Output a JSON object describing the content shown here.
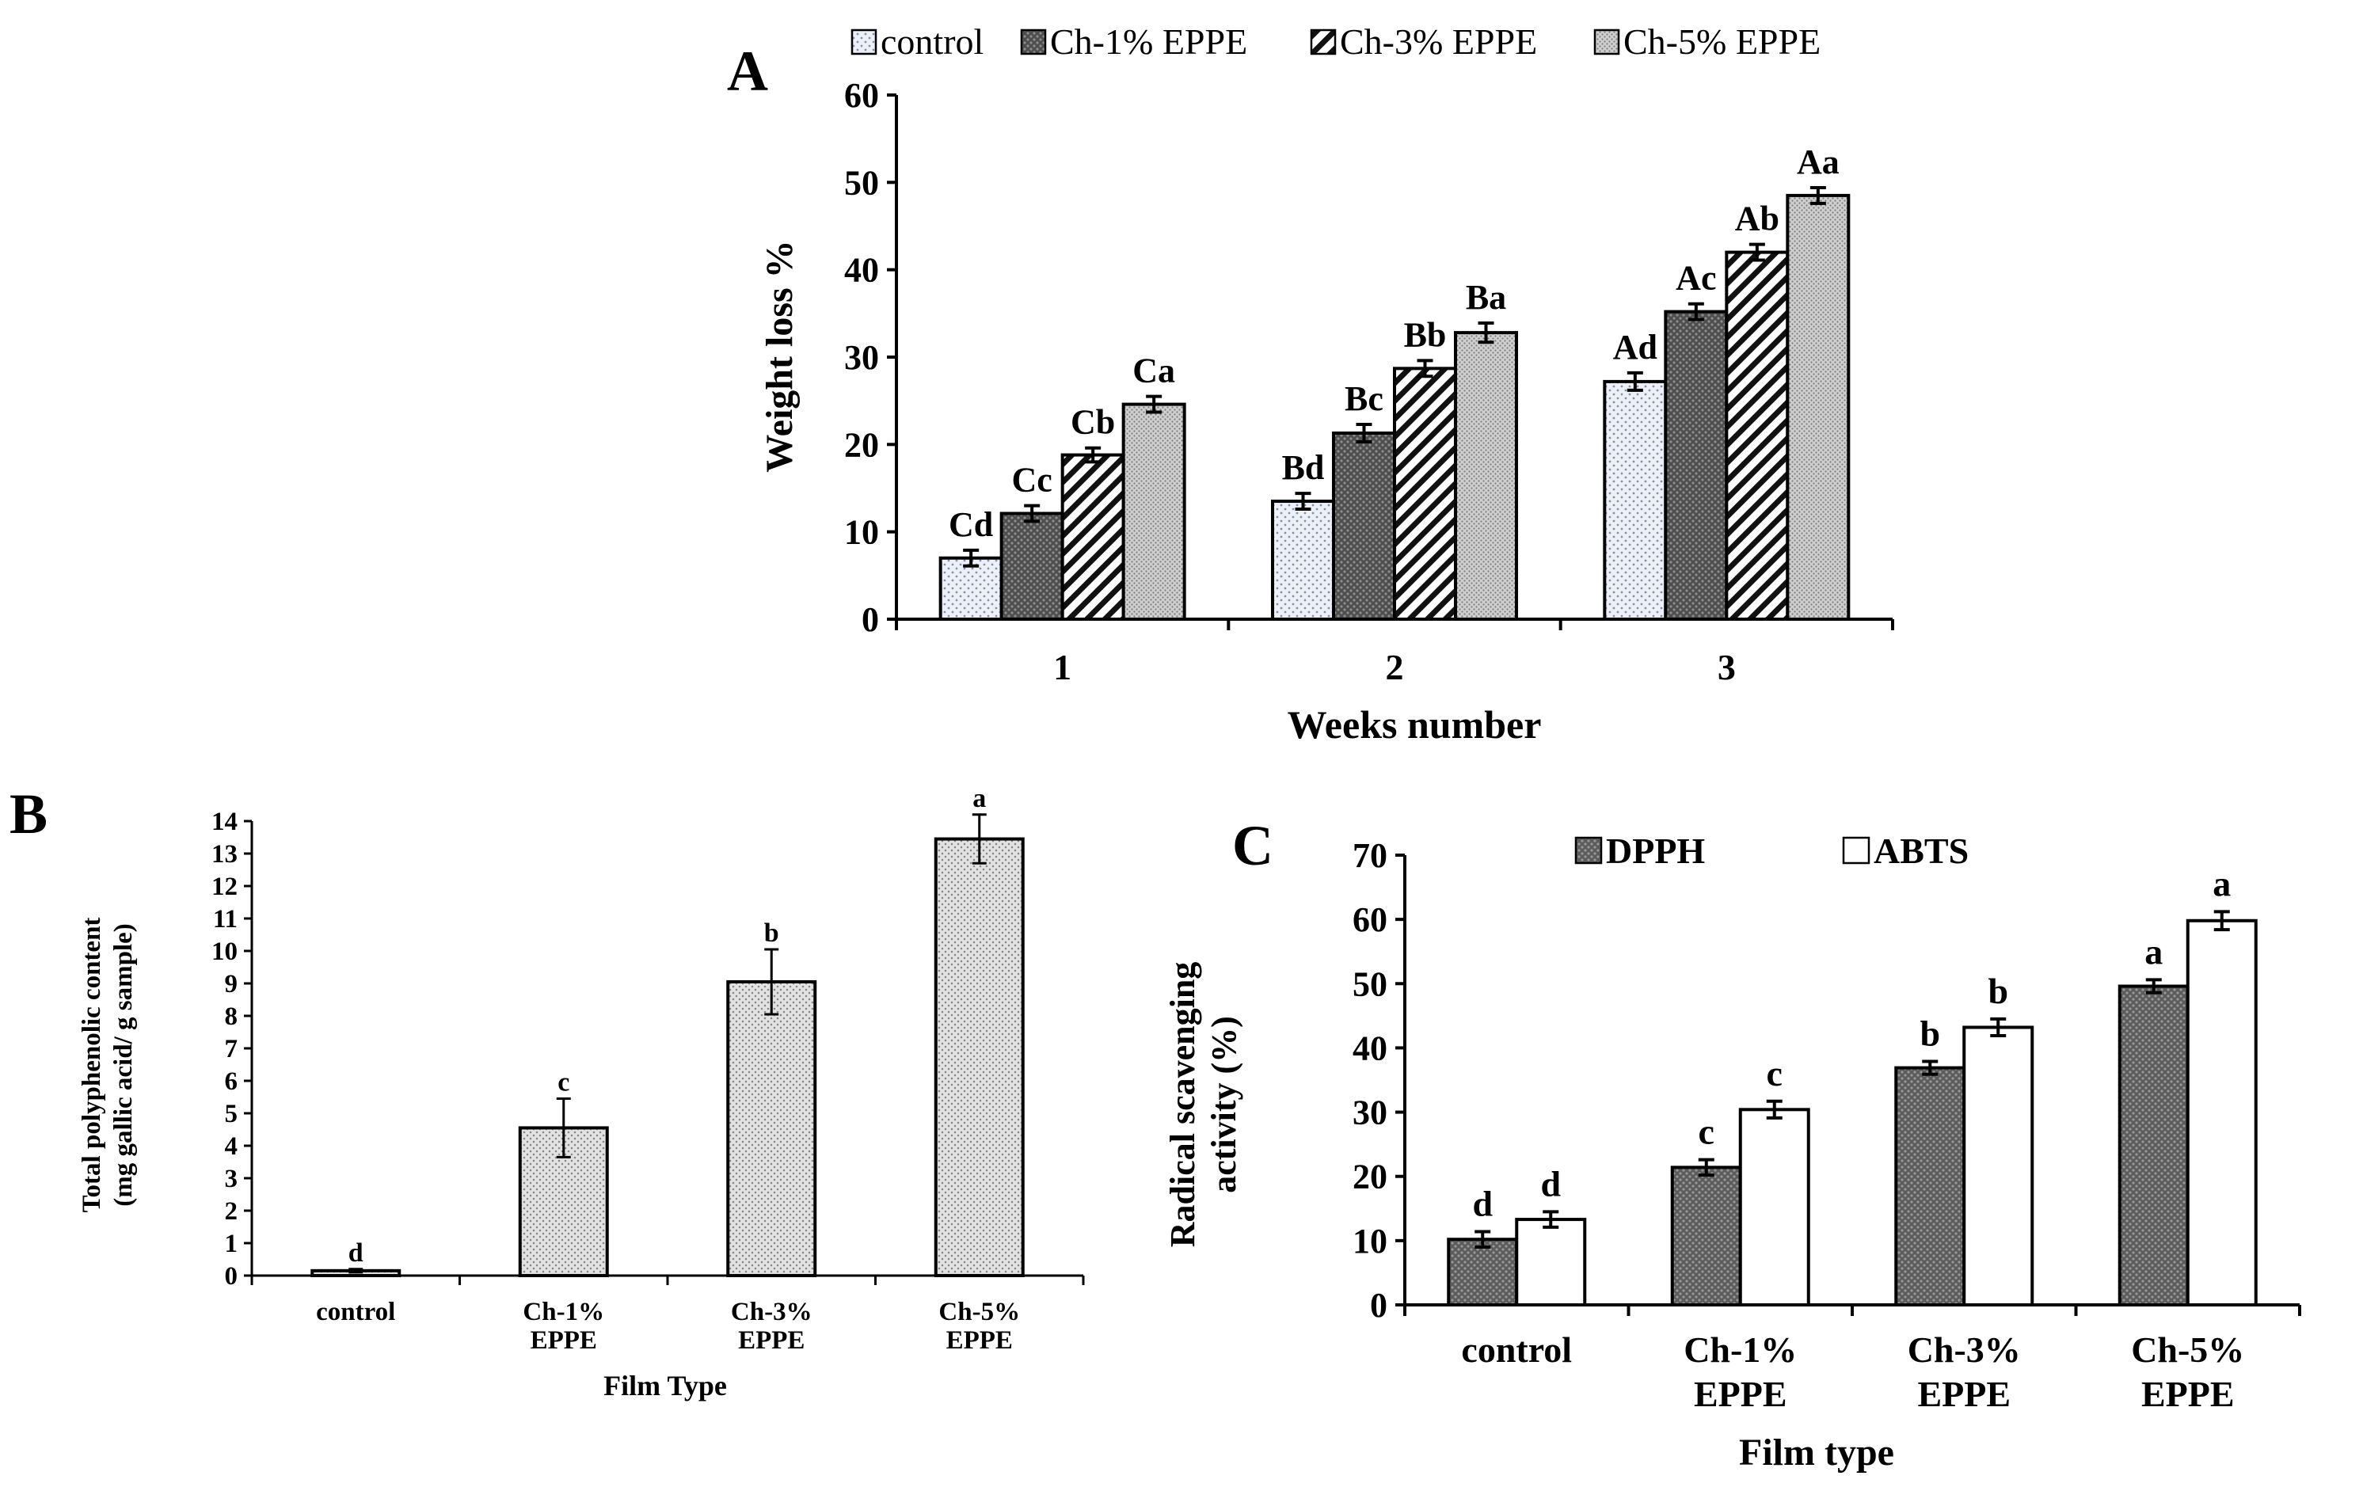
{
  "colors": {
    "control": "#eef0f8",
    "ch1": "#5a5a5a",
    "ch3": "#ffffff",
    "ch5": "#d4d4d4",
    "dpph": "#6b6b6b",
    "abts": "#ffffff",
    "axis": "#000000"
  },
  "chart_data": [
    {
      "panel": "A",
      "type": "bar",
      "xlabel": "Weeks number",
      "ylabel": "Weight loss %",
      "ylim": [
        0,
        60
      ],
      "yticks": [
        "0",
        "10",
        "20",
        "30",
        "40",
        "50",
        "60"
      ],
      "legend_position": "top",
      "categories": [
        "1",
        "2",
        "3"
      ],
      "series": [
        {
          "name": "control",
          "pattern": "dots",
          "values": [
            7.0,
            13.5,
            27.2
          ],
          "errors": [
            0.9,
            0.9,
            1.0
          ],
          "labels": [
            "Cd",
            "Bd",
            "Ad"
          ]
        },
        {
          "name": "Ch-1% EPPE",
          "pattern": "dark-grid",
          "values": [
            12.1,
            21.3,
            35.2
          ],
          "errors": [
            0.9,
            1.0,
            0.9
          ],
          "labels": [
            "Cc",
            "Bc",
            "Ac"
          ]
        },
        {
          "name": "Ch-3% EPPE",
          "pattern": "diagonal",
          "values": [
            18.8,
            28.7,
            42.0
          ],
          "errors": [
            0.8,
            0.9,
            0.9
          ],
          "labels": [
            "Cb",
            "Bb",
            "Ab"
          ]
        },
        {
          "name": "Ch-5% EPPE",
          "pattern": "fine-dots",
          "values": [
            24.6,
            32.8,
            48.5
          ],
          "errors": [
            0.9,
            1.1,
            0.9
          ],
          "labels": [
            "Ca",
            "Ba",
            "Aa"
          ]
        }
      ]
    },
    {
      "panel": "B",
      "type": "bar",
      "xlabel": "Film Type",
      "ylabel_line1": "Total polyphenolic content",
      "ylabel_line2": "(mg gallic acid/ g sample)",
      "ylim": [
        0,
        14
      ],
      "yticks": [
        "0",
        "1",
        "2",
        "3",
        "4",
        "5",
        "6",
        "7",
        "8",
        "9",
        "10",
        "11",
        "12",
        "13",
        "14"
      ],
      "categories": [
        [
          "control"
        ],
        [
          "Ch-1%",
          "EPPE"
        ],
        [
          "Ch-3%",
          "EPPE"
        ],
        [
          "Ch-5%",
          "EPPE"
        ]
      ],
      "values": [
        0.15,
        4.55,
        9.05,
        13.45
      ],
      "errors": [
        0.05,
        0.9,
        1.0,
        0.75
      ],
      "labels": [
        "d",
        "c",
        "b",
        "a"
      ]
    },
    {
      "panel": "C",
      "type": "bar",
      "xlabel": "Film type",
      "ylabel_line1": "Radical scavenging",
      "ylabel_line2": "activity (%)",
      "ylim": [
        0,
        70
      ],
      "yticks": [
        "0",
        "10",
        "20",
        "30",
        "40",
        "50",
        "60",
        "70"
      ],
      "legend_position": "top",
      "categories": [
        [
          "control"
        ],
        [
          "Ch-1%",
          "EPPE"
        ],
        [
          "Ch-3%",
          "EPPE"
        ],
        [
          "Ch-5%",
          "EPPE"
        ]
      ],
      "series": [
        {
          "name": "DPPH",
          "values": [
            10.2,
            21.4,
            36.9,
            49.6
          ],
          "errors": [
            1.2,
            1.2,
            1.0,
            1.0
          ],
          "labels": [
            "d",
            "c",
            "b",
            "a"
          ]
        },
        {
          "name": "ABTS",
          "values": [
            13.3,
            30.4,
            43.2,
            59.8
          ],
          "errors": [
            1.2,
            1.3,
            1.3,
            1.4
          ],
          "labels": [
            "d",
            "c",
            "b",
            "a"
          ]
        }
      ]
    }
  ]
}
